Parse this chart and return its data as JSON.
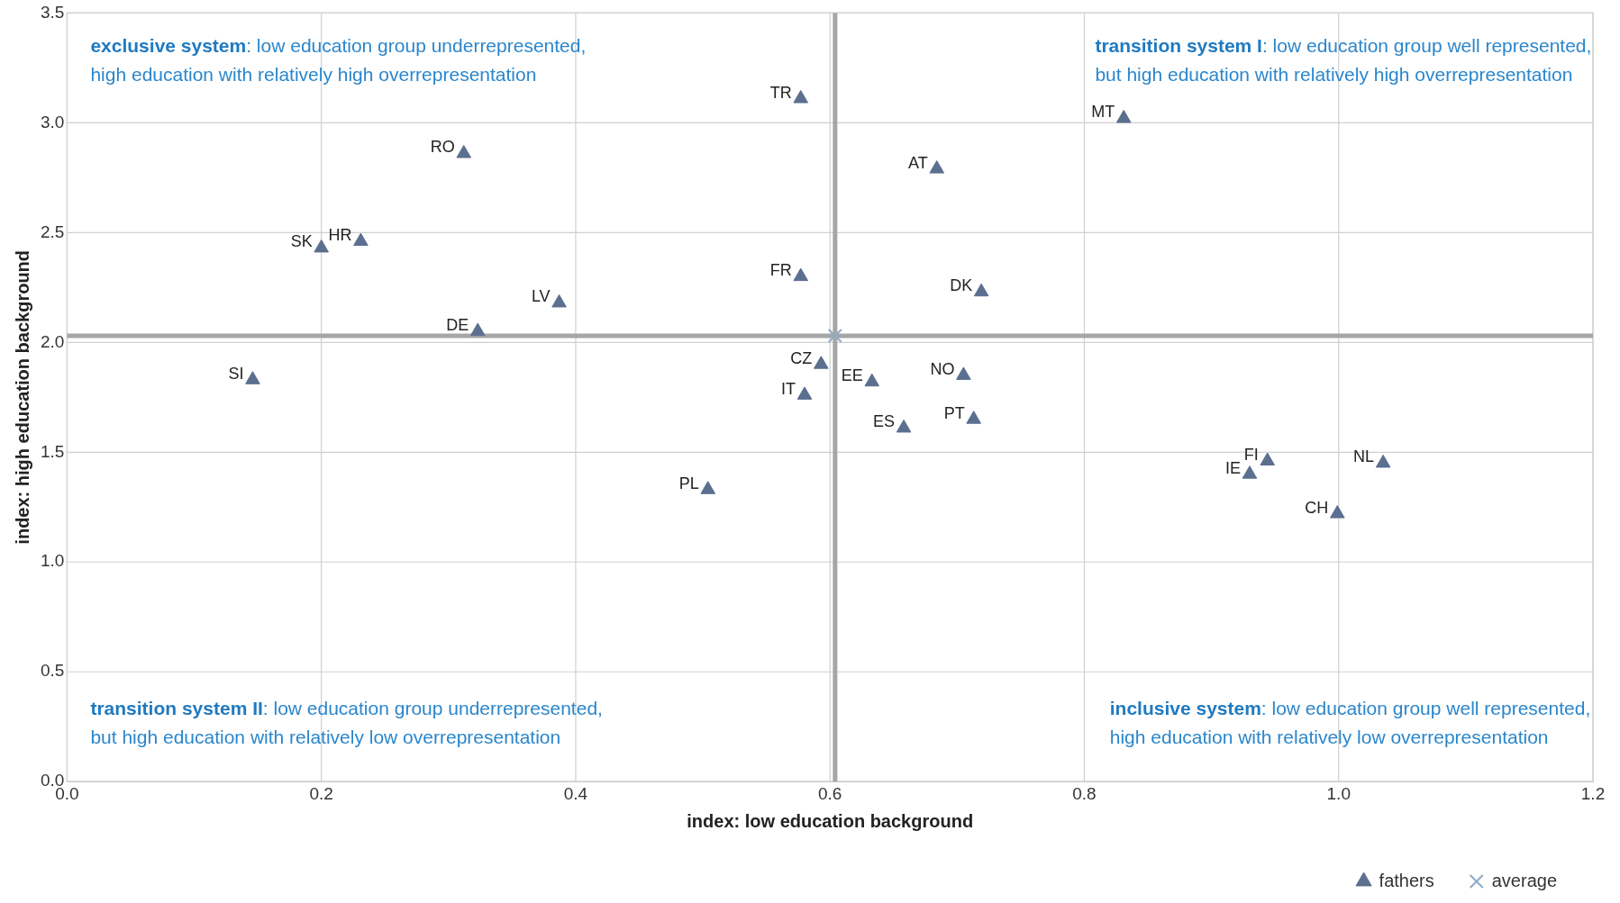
{
  "chart_data": {
    "type": "scatter",
    "xlabel": "index: low education background",
    "ylabel": "index: high education background",
    "xlim": [
      0,
      1.2
    ],
    "ylim": [
      0,
      3.5
    ],
    "xticks": [
      {
        "value": 0,
        "label": "0.0"
      },
      {
        "value": 0.2,
        "label": "0.2"
      },
      {
        "value": 0.4,
        "label": "0.4"
      },
      {
        "value": 0.6,
        "label": "0.6"
      },
      {
        "value": 0.8,
        "label": "0.8"
      },
      {
        "value": 1,
        "label": "1.0"
      },
      {
        "value": 1.2,
        "label": "1.2"
      }
    ],
    "yticks": [
      {
        "value": 0,
        "label": "0.0"
      },
      {
        "value": 0.5,
        "label": "0.5"
      },
      {
        "value": 1,
        "label": "1.0"
      },
      {
        "value": 1.5,
        "label": "1.5"
      },
      {
        "value": 2,
        "label": "2.0"
      },
      {
        "value": 2.5,
        "label": "2.5"
      },
      {
        "value": 3,
        "label": "3.0"
      },
      {
        "value": 3.5,
        "label": "3.5"
      }
    ],
    "grid": true,
    "legend": "bottom right",
    "series": [
      {
        "name": "fathers",
        "color": "#5b6f8f",
        "marker": "triangle",
        "x": [
          0.577,
          0.312,
          0.2,
          0.231,
          0.387,
          0.323,
          0.146,
          0.577,
          0.593,
          0.58,
          0.504,
          0.633,
          0.658,
          0.705,
          0.713,
          0.684,
          0.719,
          0.831,
          0.93,
          0.944,
          1.035,
          0.999
        ],
        "values": [
          3.11,
          2.86,
          2.43,
          2.46,
          2.18,
          2.05,
          1.83,
          2.3,
          1.9,
          1.76,
          1.33,
          1.82,
          1.61,
          1.85,
          1.65,
          2.79,
          2.23,
          3.02,
          1.4,
          1.46,
          1.45,
          1.22
        ]
      },
      {
        "name": "average",
        "color": "#8fa9c8",
        "marker": "cross",
        "x": [
          0.604
        ],
        "values": [
          2.03
        ]
      }
    ],
    "ref_lines": [
      {
        "axis": "x",
        "value": 0.604,
        "color": "#a6a6a6"
      },
      {
        "axis": "y",
        "value": 2.03,
        "color": "#a6a6a6"
      }
    ],
    "annotations": [
      "exclusive system: low education group underrepresented,\nhigh education with relatively high overrepresentation",
      "transition system I: low education group well represented,\nbut high education with relatively high overrepresentation",
      "transition system II: low education group underrepresented,\nbut high education with relatively low overrepresentation",
      "inclusive system: low education group well represented,\nhigh education with relatively low overrepresentation",
      {
        "text": "TR",
        "x": 0.577,
        "y": 3.11
      },
      {
        "text": "RO",
        "x": 0.312,
        "y": 2.86
      },
      {
        "text": "SK",
        "x": 0.2,
        "y": 2.43
      },
      {
        "text": "HR",
        "x": 0.231,
        "y": 2.46
      },
      {
        "text": "LV",
        "x": 0.387,
        "y": 2.18
      },
      {
        "text": "DE",
        "x": 0.323,
        "y": 2.05
      },
      {
        "text": "SI",
        "x": 0.146,
        "y": 1.83
      },
      {
        "text": "FR",
        "x": 0.577,
        "y": 2.3
      },
      {
        "text": "CZ",
        "x": 0.593,
        "y": 1.9
      },
      {
        "text": "IT",
        "x": 0.58,
        "y": 1.76
      },
      {
        "text": "PL",
        "x": 0.504,
        "y": 1.33
      },
      {
        "text": "EE",
        "x": 0.633,
        "y": 1.82
      },
      {
        "text": "ES",
        "x": 0.658,
        "y": 1.61
      },
      {
        "text": "NO",
        "x": 0.705,
        "y": 1.85
      },
      {
        "text": "PT",
        "x": 0.713,
        "y": 1.65
      },
      {
        "text": "AT",
        "x": 0.684,
        "y": 2.79
      },
      {
        "text": "DK",
        "x": 0.719,
        "y": 2.23
      },
      {
        "text": "MT",
        "x": 0.831,
        "y": 3.02
      },
      {
        "text": "IE",
        "x": 0.93,
        "y": 1.4
      },
      {
        "text": "FI",
        "x": 0.944,
        "y": 1.46
      },
      {
        "text": "NL",
        "x": 1.035,
        "y": 1.45
      },
      {
        "text": "CH",
        "x": 0.999,
        "y": 1.22
      }
    ]
  }
}
